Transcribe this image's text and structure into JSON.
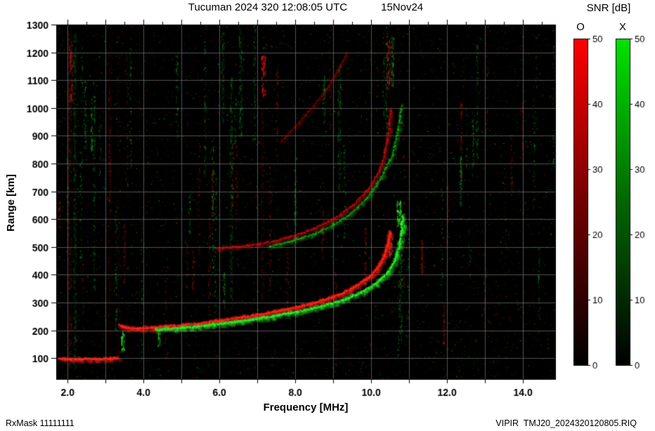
{
  "chart_data": {
    "type": "heatmap",
    "subtype": "ionogram",
    "title": "Tucuman 2024 320 12:08:05 UTC",
    "date_label": "15Nov24",
    "xlabel": "Frequency [MHz]",
    "ylabel": "Range [km]",
    "xlim": [
      1.7,
      14.85
    ],
    "ylim": [
      25,
      1300
    ],
    "x_ticks": {
      "major": [
        2,
        4,
        6,
        8,
        10,
        12,
        14
      ],
      "labels": [
        "2.0",
        "4.0",
        "6.0",
        "8.0",
        "10.0",
        "12.0",
        "14.0"
      ],
      "minor": [
        2,
        3,
        4,
        5,
        6,
        7,
        8,
        9,
        10,
        11,
        12,
        13,
        14
      ],
      "top_minor_step": 0.5
    },
    "y_ticks": [
      100,
      200,
      300,
      400,
      500,
      600,
      700,
      800,
      900,
      1000,
      1100,
      1200,
      1300
    ],
    "grid": true,
    "background": "#000000",
    "colorbar": {
      "title": "SNR [dB]",
      "range": [
        0,
        50
      ],
      "ticks": [
        0,
        10,
        20,
        30,
        40,
        50
      ],
      "bars": [
        {
          "label": "O",
          "color": "#ff0000"
        },
        {
          "label": "X",
          "color": "#00e400"
        }
      ]
    },
    "traces": [
      {
        "name": "E-layer-O",
        "color": "#ff2a20",
        "width": 2.4,
        "alpha": 0.95,
        "points": [
          [
            1.75,
            100
          ],
          [
            2.2,
            99
          ],
          [
            2.7,
            100
          ],
          [
            3.05,
            101
          ],
          [
            3.3,
            104
          ]
        ]
      },
      {
        "name": "F-1hop-O",
        "color": "#ff2418",
        "width": 2.6,
        "alpha": 0.95,
        "points": [
          [
            3.35,
            222
          ],
          [
            3.55,
            212
          ],
          [
            3.8,
            210
          ],
          [
            4.2,
            213
          ],
          [
            4.8,
            220
          ],
          [
            5.4,
            228
          ],
          [
            6.0,
            239
          ],
          [
            6.6,
            251
          ],
          [
            7.2,
            264
          ],
          [
            7.8,
            280
          ],
          [
            8.4,
            299
          ],
          [
            9.0,
            324
          ],
          [
            9.5,
            356
          ],
          [
            9.9,
            392
          ],
          [
            10.15,
            428
          ],
          [
            10.32,
            470
          ],
          [
            10.42,
            515
          ],
          [
            10.47,
            558
          ]
        ]
      },
      {
        "name": "F-1hop-X",
        "color": "#2cf02c",
        "width": 2.4,
        "alpha": 0.95,
        "points": [
          [
            4.3,
            205
          ],
          [
            5.0,
            212
          ],
          [
            5.6,
            220
          ],
          [
            6.2,
            230
          ],
          [
            6.8,
            241
          ],
          [
            7.4,
            254
          ],
          [
            8.0,
            269
          ],
          [
            8.6,
            287
          ],
          [
            9.2,
            310
          ],
          [
            9.7,
            338
          ],
          [
            10.1,
            370
          ],
          [
            10.4,
            408
          ],
          [
            10.6,
            452
          ],
          [
            10.72,
            505
          ],
          [
            10.78,
            560
          ],
          [
            10.82,
            615
          ]
        ]
      },
      {
        "name": "F-2hop-O",
        "color": "#d41414",
        "width": 2.2,
        "alpha": 0.6,
        "points": [
          [
            5.9,
            497
          ],
          [
            6.5,
            504
          ],
          [
            7.0,
            513
          ],
          [
            7.5,
            526
          ],
          [
            8.0,
            545
          ],
          [
            8.5,
            570
          ],
          [
            9.0,
            604
          ],
          [
            9.5,
            652
          ],
          [
            9.9,
            710
          ],
          [
            10.2,
            775
          ],
          [
            10.35,
            845
          ],
          [
            10.45,
            925
          ],
          [
            10.5,
            1000
          ]
        ]
      },
      {
        "name": "F-2hop-X",
        "color": "#1ed01e",
        "width": 2.0,
        "alpha": 0.55,
        "points": [
          [
            7.3,
            504
          ],
          [
            7.9,
            524
          ],
          [
            8.5,
            550
          ],
          [
            9.0,
            582
          ],
          [
            9.5,
            628
          ],
          [
            9.9,
            682
          ],
          [
            10.25,
            752
          ],
          [
            10.55,
            835
          ],
          [
            10.7,
            925
          ],
          [
            10.78,
            1010
          ]
        ]
      },
      {
        "name": "F-3hop-O",
        "color": "#b01010",
        "width": 2.0,
        "alpha": 0.38,
        "points": [
          [
            7.6,
            880
          ],
          [
            8.0,
            938
          ],
          [
            8.4,
            1000
          ],
          [
            8.8,
            1068
          ],
          [
            9.1,
            1135
          ],
          [
            9.35,
            1200
          ]
        ]
      }
    ],
    "interference": [
      {
        "freq": 7.15,
        "r0": 1050,
        "r1": 1195,
        "color": "#e01010",
        "alpha": 0.85,
        "width": 3
      },
      {
        "freq": 7.12,
        "r0": 300,
        "r1": 1040,
        "color": "#991010",
        "alpha": 0.2,
        "width": 2
      },
      {
        "freq": 10.45,
        "r0": 1070,
        "r1": 1265,
        "color": "#cc2020",
        "alpha": 0.5,
        "width": 2.5
      },
      {
        "freq": 10.55,
        "r0": 1080,
        "r1": 1260,
        "color": "#22bb22",
        "alpha": 0.4,
        "width": 2
      },
      {
        "freq": 10.72,
        "r0": 575,
        "r1": 668,
        "color": "#30ff30",
        "alpha": 0.9,
        "width": 3
      },
      {
        "freq": 10.5,
        "r0": 470,
        "r1": 560,
        "color": "#ff3020",
        "alpha": 0.6,
        "width": 2.5
      },
      {
        "freq": 3.45,
        "r0": 128,
        "r1": 198,
        "color": "#2adf2a",
        "alpha": 0.75,
        "width": 2.5
      },
      {
        "freq": 4.4,
        "r0": 145,
        "r1": 195,
        "color": "#22cc22",
        "alpha": 0.45,
        "width": 2
      },
      {
        "freq": 2.05,
        "r0": 60,
        "r1": 1270,
        "color": "#aa1414",
        "alpha": 0.28,
        "width": 2
      },
      {
        "freq": 2.18,
        "r0": 60,
        "r1": 1270,
        "color": "#11aa22",
        "alpha": 0.22,
        "width": 2
      },
      {
        "freq": 2.08,
        "r0": 1020,
        "r1": 1230,
        "color": "#cc2020",
        "alpha": 0.5,
        "width": 2.5
      },
      {
        "freq": 3.1,
        "r0": 80,
        "r1": 1260,
        "color": "#8d1010",
        "alpha": 0.16,
        "width": 2
      },
      {
        "freq": 3.32,
        "r0": 80,
        "r1": 1260,
        "color": "#8d1010",
        "alpha": 0.14,
        "width": 2
      },
      {
        "freq": 6.3,
        "r0": 280,
        "r1": 1120,
        "color": "#12a81c",
        "alpha": 0.25,
        "width": 2
      },
      {
        "freq": 6.55,
        "r0": 900,
        "r1": 1280,
        "color": "#16b020",
        "alpha": 0.3,
        "width": 2.5
      },
      {
        "freq": 6.08,
        "r0": 950,
        "r1": 1275,
        "color": "#14a01d",
        "alpha": 0.24,
        "width": 2
      },
      {
        "freq": 9.15,
        "r0": 700,
        "r1": 1160,
        "color": "#16b020",
        "alpha": 0.26,
        "width": 2.5
      },
      {
        "freq": 8.75,
        "r0": 950,
        "r1": 1120,
        "color": "#16b020",
        "alpha": 0.3,
        "width": 2
      }
    ],
    "noise": {
      "seed": 20241115,
      "speckles": 7500,
      "columns": 70
    }
  },
  "footer": {
    "left": "RxMask 11111111",
    "right": "VIPIR  TMJ20_2024320120805.RIQ"
  }
}
